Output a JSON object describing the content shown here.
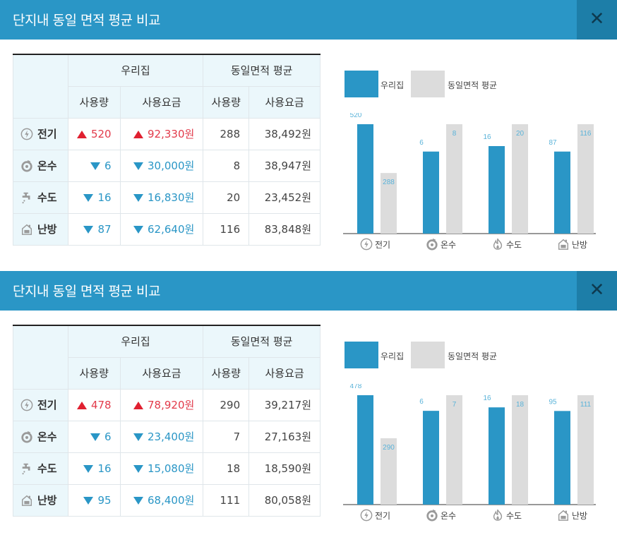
{
  "colors": {
    "accent": "#2a96c6",
    "avg_bar": "#dcdcdc",
    "up": "#e23a4a",
    "down": "#2a96c6"
  },
  "panels": [
    {
      "title": "단지내 동일 면적 평균 비교",
      "close_label": "✕",
      "table": {
        "group_ours": "우리집",
        "group_avg": "동일면적 평균",
        "col_usage": "사용량",
        "col_fee": "사용요금",
        "rows": [
          {
            "icon": "electric-icon",
            "label": "전기",
            "trend": "up",
            "ours_usage": "520",
            "ours_fee": "92,330원",
            "avg_usage": "288",
            "avg_fee": "38,492원"
          },
          {
            "icon": "hot-water-icon",
            "label": "온수",
            "trend": "down",
            "ours_usage": "6",
            "ours_fee": "30,000원",
            "avg_usage": "8",
            "avg_fee": "38,947원"
          },
          {
            "icon": "water-tap-icon",
            "label": "수도",
            "trend": "down",
            "ours_usage": "16",
            "ours_fee": "16,830원",
            "avg_usage": "20",
            "avg_fee": "23,452원"
          },
          {
            "icon": "heating-icon",
            "label": "난방",
            "trend": "down",
            "ours_usage": "87",
            "ours_fee": "62,640원",
            "avg_usage": "116",
            "avg_fee": "83,848원"
          }
        ]
      },
      "chart_data": {
        "type": "bar",
        "categories": [
          "전기",
          "온수",
          "수도",
          "난방"
        ],
        "category_icons": [
          "electric-icon",
          "hot-water-icon",
          "flame-icon",
          "heating-icon"
        ],
        "series": [
          {
            "name": "우리집",
            "values": [
              520,
              6,
              16,
              87
            ],
            "labels": [
              "520",
              "6",
              "16",
              "87"
            ]
          },
          {
            "name": "동일면적 평균",
            "values": [
              288,
              8,
              20,
              116
            ],
            "labels": [
              "288",
              "8",
              "20",
              "116"
            ]
          }
        ],
        "normalized_per_category": true,
        "legend_position": "top-left"
      }
    },
    {
      "title": "단지내 동일 면적 평균 비교",
      "close_label": "✕",
      "table": {
        "group_ours": "우리집",
        "group_avg": "동일면적 평균",
        "col_usage": "사용량",
        "col_fee": "사용요금",
        "rows": [
          {
            "icon": "electric-icon",
            "label": "전기",
            "trend": "up",
            "ours_usage": "478",
            "ours_fee": "78,920원",
            "avg_usage": "290",
            "avg_fee": "39,217원"
          },
          {
            "icon": "hot-water-icon",
            "label": "온수",
            "trend": "down",
            "ours_usage": "6",
            "ours_fee": "23,400원",
            "avg_usage": "7",
            "avg_fee": "27,163원"
          },
          {
            "icon": "water-tap-icon",
            "label": "수도",
            "trend": "down",
            "ours_usage": "16",
            "ours_fee": "15,080원",
            "avg_usage": "18",
            "avg_fee": "18,590원"
          },
          {
            "icon": "heating-icon",
            "label": "난방",
            "trend": "down",
            "ours_usage": "95",
            "ours_fee": "68,400원",
            "avg_usage": "111",
            "avg_fee": "80,058원"
          }
        ]
      },
      "chart_data": {
        "type": "bar",
        "categories": [
          "전기",
          "온수",
          "수도",
          "난방"
        ],
        "category_icons": [
          "electric-icon",
          "hot-water-icon",
          "flame-icon",
          "heating-icon"
        ],
        "series": [
          {
            "name": "우리집",
            "values": [
              478,
              6,
              16,
              95
            ],
            "labels": [
              "478",
              "6",
              "16",
              "95"
            ]
          },
          {
            "name": "동일면적 평균",
            "values": [
              290,
              7,
              18,
              111
            ],
            "labels": [
              "290",
              "7",
              "18",
              "111"
            ]
          }
        ],
        "normalized_per_category": true,
        "legend_position": "top-left"
      }
    }
  ]
}
